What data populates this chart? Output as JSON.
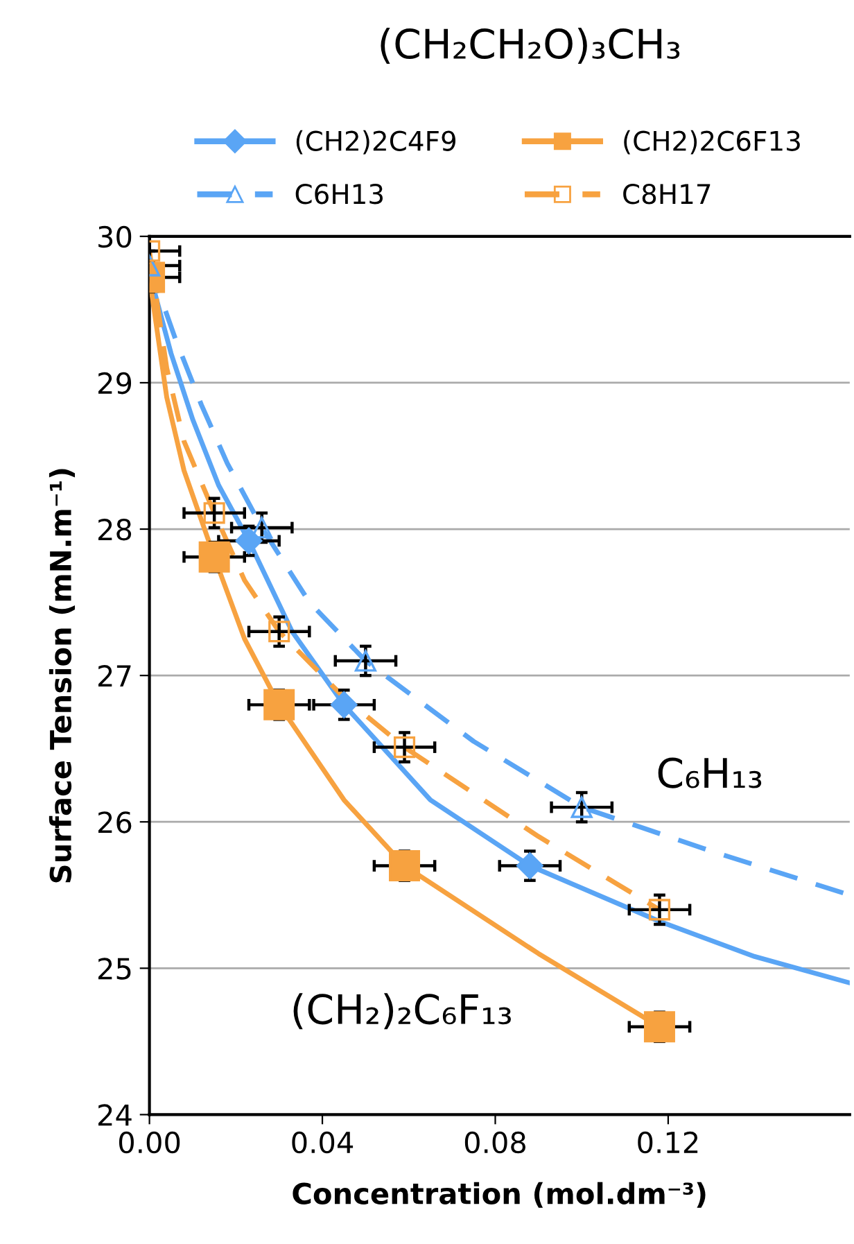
{
  "chart_data": {
    "type": "scatter",
    "title": "(CH₂CH₂O)₃CH₃",
    "xlabel": "Concentration (mol.dm⁻³)",
    "ylabel": "Surface Tension (mN.m⁻¹)",
    "xlim": [
      0,
      0.162
    ],
    "xticks": [
      {
        "value": 0,
        "label": "0.00"
      },
      0.04,
      0.08,
      0.12
    ],
    "ylim": [
      24,
      30
    ],
    "yticks": [
      24,
      25,
      26,
      27,
      28,
      29,
      30
    ],
    "grid": "y",
    "legend": "top",
    "annotations": [
      "C₆H₁₃",
      "(CH₂)₂C₆F₁₃"
    ],
    "series": [
      {
        "name": "(CH2)2C4F9",
        "color": "#5aa5f5",
        "marker": "diamond",
        "line_style": "solid",
        "x": [
          0.023,
          0.045,
          0.088
        ],
        "values": [
          27.92,
          26.8,
          25.7
        ],
        "errors": [
          0.1,
          0.1,
          0.1
        ],
        "xerrors": [
          0.007,
          0.007,
          0.007
        ]
      },
      {
        "name": "(CH2)2C6F13",
        "color": "#f7a240",
        "marker": "square",
        "line_style": "solid",
        "x": [
          0,
          0.015,
          0.03,
          0.059,
          0.118
        ],
        "values": [
          29.72,
          27.81,
          26.8,
          25.7,
          24.6
        ],
        "errors": [
          0.1,
          0.1,
          0.1,
          0.1,
          0.1
        ],
        "xerrors": [
          [
            0,
            0.007
          ],
          0.007,
          0.007,
          0.007,
          0.007
        ]
      },
      {
        "name": "C6H13",
        "color": "#5aa5f5",
        "marker": "triangle",
        "line_style": "dashed",
        "x": [
          0,
          0.026,
          0.05,
          0.1
        ],
        "values": [
          29.8,
          28.01,
          27.1,
          26.1
        ],
        "errors": [
          0.1,
          0.1,
          0.1,
          0.1
        ],
        "xerrors": [
          [
            0,
            0.007
          ],
          0.007,
          0.007,
          0.007
        ]
      },
      {
        "name": "C8H17",
        "color": "#f7a240",
        "marker": "square",
        "line_style": "dashed",
        "x": [
          0,
          0.015,
          0.03,
          0.059,
          0.118
        ],
        "values": [
          29.9,
          28.11,
          27.3,
          26.51,
          25.4
        ],
        "errors": [
          0.1,
          0.1,
          0.1,
          0.1,
          0.1
        ],
        "xerrors": [
          [
            0,
            0.007
          ],
          0.007,
          0.007,
          0.007,
          0.007
        ]
      },
      {
        "type": "line",
        "color": "#5aa5f5",
        "line_style": "solid",
        "x": [
          0,
          0.005,
          0.01,
          0.016,
          0.023,
          0.033,
          0.045,
          0.065,
          0.088,
          0.118,
          0.14,
          0.162
        ],
        "values": [
          29.75,
          29.2,
          28.75,
          28.3,
          27.92,
          27.3,
          26.8,
          26.15,
          25.7,
          25.32,
          25.08,
          24.9
        ]
      },
      {
        "type": "line",
        "color": "#f7a240",
        "line_style": "solid",
        "x": [
          0,
          0.004,
          0.008,
          0.015,
          0.022,
          0.03,
          0.045,
          0.059,
          0.09,
          0.118
        ],
        "values": [
          29.72,
          28.9,
          28.4,
          27.81,
          27.25,
          26.8,
          26.15,
          25.7,
          25.1,
          24.6
        ]
      },
      {
        "type": "line",
        "color": "#5aa5f5",
        "line_style": "dashed",
        "x": [
          0,
          0.006,
          0.012,
          0.018,
          0.026,
          0.037,
          0.05,
          0.075,
          0.1,
          0.13,
          0.162
        ],
        "values": [
          29.8,
          29.3,
          28.85,
          28.45,
          28.01,
          27.5,
          27.1,
          26.55,
          26.1,
          25.8,
          25.5
        ]
      },
      {
        "type": "line",
        "color": "#f7a240",
        "line_style": "dashed",
        "x": [
          0,
          0.004,
          0.008,
          0.015,
          0.022,
          0.03,
          0.045,
          0.059,
          0.09,
          0.118
        ],
        "values": [
          29.9,
          29.1,
          28.6,
          28.11,
          27.65,
          27.3,
          26.85,
          26.51,
          25.9,
          25.4
        ]
      }
    ]
  }
}
